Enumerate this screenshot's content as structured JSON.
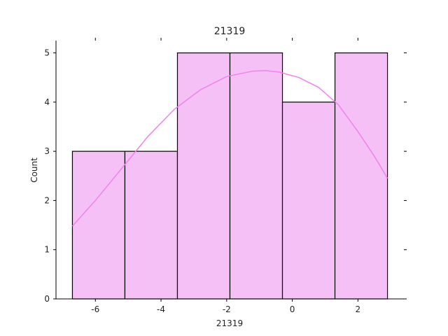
{
  "chart_data": {
    "type": "bar",
    "subtype": "histogram-with-kde",
    "title": "21319",
    "xlabel": "21319",
    "ylabel": "Count",
    "bins": [
      {
        "start": -6.7,
        "end": -5.1,
        "count": 3
      },
      {
        "start": -5.1,
        "end": -3.5,
        "count": 3
      },
      {
        "start": -3.5,
        "end": -1.9,
        "count": 5
      },
      {
        "start": -1.9,
        "end": -0.3,
        "count": 5
      },
      {
        "start": -0.3,
        "end": 1.3,
        "count": 4
      },
      {
        "start": 1.3,
        "end": 2.9,
        "count": 5
      }
    ],
    "kde": {
      "x": [
        -6.7,
        -6.0,
        -5.2,
        -4.4,
        -3.6,
        -2.8,
        -2.0,
        -1.2,
        -0.8,
        -0.4,
        0.2,
        0.8,
        1.4,
        2.0,
        2.5,
        2.9
      ],
      "y": [
        1.48,
        2.0,
        2.65,
        3.3,
        3.85,
        4.25,
        4.52,
        4.63,
        4.64,
        4.61,
        4.5,
        4.3,
        3.95,
        3.4,
        2.9,
        2.45
      ]
    },
    "xticks": [
      -6,
      -4,
      -2,
      0,
      2
    ],
    "yticks": [
      0,
      1,
      2,
      3,
      4,
      5
    ],
    "xlim": [
      -7.2,
      3.4
    ],
    "ylim": [
      0,
      5.25
    ],
    "grid": false,
    "colors": {
      "bar_fill": "#f5c0f5",
      "bar_edge": "#000000",
      "kde_line": "#ee82ee"
    }
  }
}
